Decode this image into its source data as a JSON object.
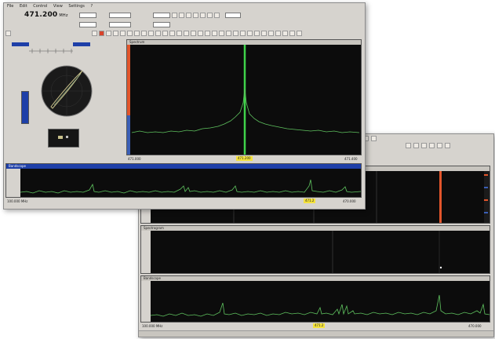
{
  "front_window": {
    "frequency": "471.200",
    "frequency_unit": "MHz",
    "menu": [
      "File",
      "Edit",
      "Control",
      "View",
      "Settings",
      "?"
    ],
    "spectrum_panel_title": "Spectrum",
    "band_panel_title": "Bandscope",
    "freq_start": "471.000",
    "freq_center": "471.200",
    "freq_end": "471.400",
    "band_start": "100.000 MHz",
    "band_end": "470.000",
    "band_marker": "471.2",
    "colors": {
      "window": "#d6d3ce",
      "trace": "#5fc35f",
      "carrier": "#3fd34a",
      "signal_blue": "#1e3fa8"
    }
  },
  "back_window": {
    "panel_titles": [
      "Waterfall",
      "Spectrogram",
      "Bandscope"
    ],
    "band_start": "100.000 MHz",
    "band_end": "470.000",
    "band_marker": "471.2",
    "colors": {
      "carrier": "#e2552b"
    }
  }
}
